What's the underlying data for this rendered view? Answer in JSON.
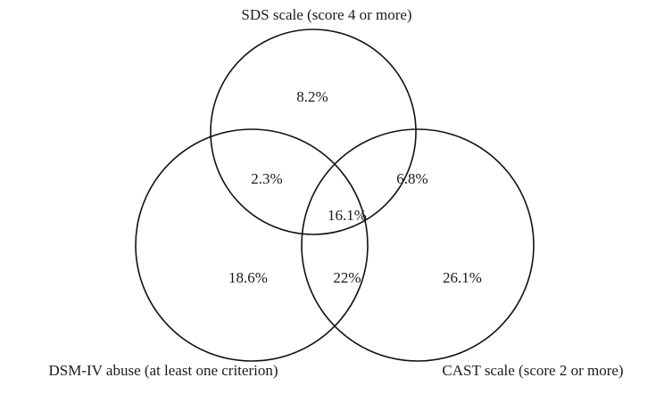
{
  "sets": [
    {
      "label": "SDS scale (score 4 or more)"
    },
    {
      "label": "DSM-IV abuse (at least one criterion)"
    },
    {
      "label": "CAST scale (score 2 or more)"
    }
  ],
  "regions": [
    {
      "label": "8.2%"
    },
    {
      "label": "2.3%"
    },
    {
      "label": "6.8%"
    },
    {
      "label": "16.1%"
    },
    {
      "label": "18.6%"
    },
    {
      "label": "22%"
    },
    {
      "label": "26.1%"
    }
  ]
}
